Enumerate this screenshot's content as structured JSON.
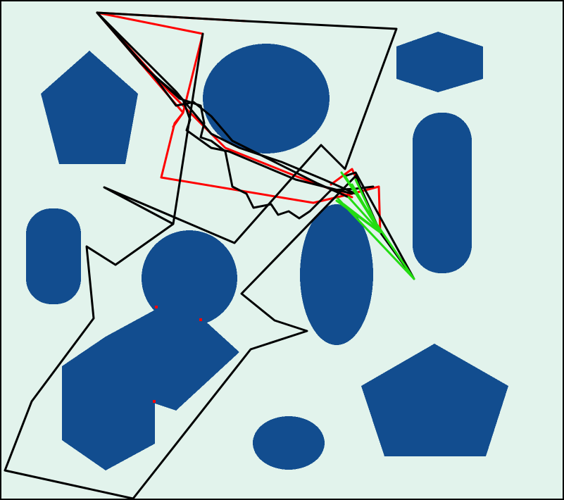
{
  "colors": {
    "background": "#e2f3ec",
    "border": "#000000",
    "obstacle": "#124d8f",
    "path_black": "#000000",
    "path_red": "#ff0000",
    "path_green": "#22dd11"
  },
  "scene": {
    "obstacles": [
      "pentagon-top-left",
      "circle-top-center",
      "hexagon-top-right",
      "capsule-right",
      "capsule-left",
      "circle-center-left",
      "blob-lower-left",
      "ellipse-center",
      "pentagon-bottom-right",
      "ellipse-bottom-center"
    ],
    "paths": [
      "black-path",
      "red-path",
      "green-fan"
    ]
  }
}
